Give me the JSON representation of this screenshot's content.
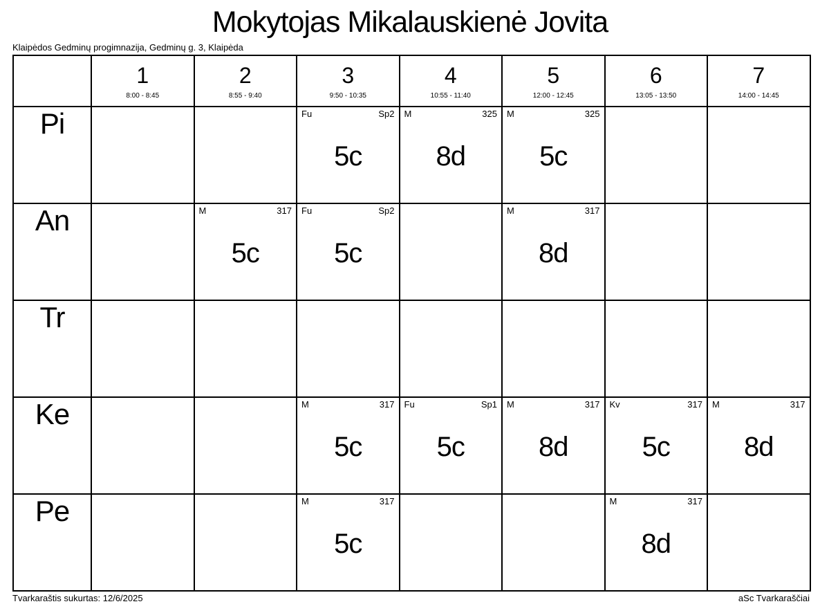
{
  "page": {
    "title": "Mokytojas Mikalauskienė Jovita",
    "subtitle": "Klaipėdos Gedminų progimnazija, Gedminų g. 3, Klaipėda",
    "footer_left": "Tvarkaraštis sukurtas: 12/6/2025",
    "footer_right": "aSc Tvarkaraščiai",
    "text_color": "#000000",
    "background_color": "#ffffff",
    "border_color": "#000000"
  },
  "timetable": {
    "periods": [
      {
        "number": "1",
        "time": "8:00 - 8:45"
      },
      {
        "number": "2",
        "time": "8:55 - 9:40"
      },
      {
        "number": "3",
        "time": "9:50 - 10:35"
      },
      {
        "number": "4",
        "time": "10:55 - 11:40"
      },
      {
        "number": "5",
        "time": "12:00 - 12:45"
      },
      {
        "number": "6",
        "time": "13:05 - 13:50"
      },
      {
        "number": "7",
        "time": "14:00 - 14:45"
      }
    ],
    "days": [
      {
        "label": "Pi",
        "lessons": [
          null,
          null,
          {
            "subject": "Fu",
            "room": "Sp2",
            "group": "5c"
          },
          {
            "subject": "M",
            "room": "325",
            "group": "8d"
          },
          {
            "subject": "M",
            "room": "325",
            "group": "5c"
          },
          null,
          null
        ]
      },
      {
        "label": "An",
        "lessons": [
          null,
          {
            "subject": "M",
            "room": "317",
            "group": "5c"
          },
          {
            "subject": "Fu",
            "room": "Sp2",
            "group": "5c"
          },
          null,
          {
            "subject": "M",
            "room": "317",
            "group": "8d"
          },
          null,
          null
        ]
      },
      {
        "label": "Tr",
        "lessons": [
          null,
          null,
          null,
          null,
          null,
          null,
          null
        ]
      },
      {
        "label": "Ke",
        "lessons": [
          null,
          null,
          {
            "subject": "M",
            "room": "317",
            "group": "5c"
          },
          {
            "subject": "Fu",
            "room": "Sp1",
            "group": "5c"
          },
          {
            "subject": "M",
            "room": "317",
            "group": "8d"
          },
          {
            "subject": "Kv",
            "room": "317",
            "group": "5c"
          },
          {
            "subject": "M",
            "room": "317",
            "group": "8d"
          }
        ]
      },
      {
        "label": "Pe",
        "lessons": [
          null,
          null,
          {
            "subject": "M",
            "room": "317",
            "group": "5c"
          },
          null,
          null,
          {
            "subject": "M",
            "room": "317",
            "group": "8d"
          },
          null
        ]
      }
    ]
  }
}
